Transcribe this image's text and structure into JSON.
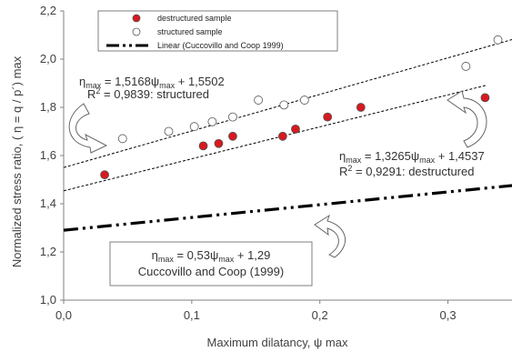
{
  "chart_data": {
    "type": "scatter",
    "xlabel": "Maximum dilatancy, ψ max",
    "ylabel": "Normalized stress ratio, ( η = q / p´) max",
    "xlim": [
      0.0,
      0.35
    ],
    "ylim": [
      1.0,
      2.2
    ],
    "x_ticks": [
      "0,0",
      "0,1",
      "0,2",
      "0,3"
    ],
    "y_ticks": [
      "1,0",
      "1,2",
      "1,4",
      "1,6",
      "1,8",
      "2,0",
      "2,2"
    ],
    "grid": false,
    "legend_position": "top-left",
    "series": [
      {
        "name": "destructured sample",
        "marker": "filled-circle",
        "color": "#d71920",
        "points": [
          [
            0.032,
            1.52
          ],
          [
            0.109,
            1.64
          ],
          [
            0.121,
            1.65
          ],
          [
            0.132,
            1.68
          ],
          [
            0.171,
            1.68
          ],
          [
            0.181,
            1.71
          ],
          [
            0.206,
            1.76
          ],
          [
            0.232,
            1.8
          ],
          [
            0.329,
            1.84
          ]
        ]
      },
      {
        "name": "structured sample",
        "marker": "open-circle",
        "color": "#ffffff",
        "points": [
          [
            0.046,
            1.67
          ],
          [
            0.082,
            1.7
          ],
          [
            0.102,
            1.72
          ],
          [
            0.116,
            1.74
          ],
          [
            0.132,
            1.76
          ],
          [
            0.152,
            1.83
          ],
          [
            0.172,
            1.81
          ],
          [
            0.188,
            1.83
          ],
          [
            0.314,
            1.97
          ],
          [
            0.339,
            2.08
          ]
        ]
      },
      {
        "name": "Linear (Cuccovillo and Coop 1999)",
        "type": "line",
        "style": "dash-dot-dot",
        "slope": 0.53,
        "intercept": 1.29
      }
    ],
    "trendlines": [
      {
        "series": "structured sample",
        "slope": 1.5168,
        "intercept": 1.5502,
        "style": "dashed"
      },
      {
        "series": "destructured sample",
        "slope": 1.3265,
        "intercept": 1.4537,
        "style": "dashed"
      }
    ],
    "annotations": {
      "structured_eq": {
        "eta": "η",
        "eta_sub": "max",
        "mid": " = 1,5168ψ",
        "psi_sub": "max",
        "tail": " + 1,5502"
      },
      "structured_r2": {
        "r": "R",
        "sup": "2",
        "tail": " = 0,9839: structured"
      },
      "destructured_eq": {
        "eta": "η",
        "eta_sub": "max",
        "mid": " = 1,3265ψ",
        "psi_sub": "max",
        "tail": " + 1,4537"
      },
      "destructured_r2": {
        "r": "R",
        "sup": "2",
        "tail": " = 0,9291: destructured"
      },
      "cuccovillo_eq": {
        "eta": "η",
        "eta_sub": "max",
        "mid": " = 0,53ψ",
        "psi_sub": "max",
        "tail": " + 1,29"
      },
      "cuccovillo_ref": "Cuccovillo and Coop (1999)"
    }
  }
}
